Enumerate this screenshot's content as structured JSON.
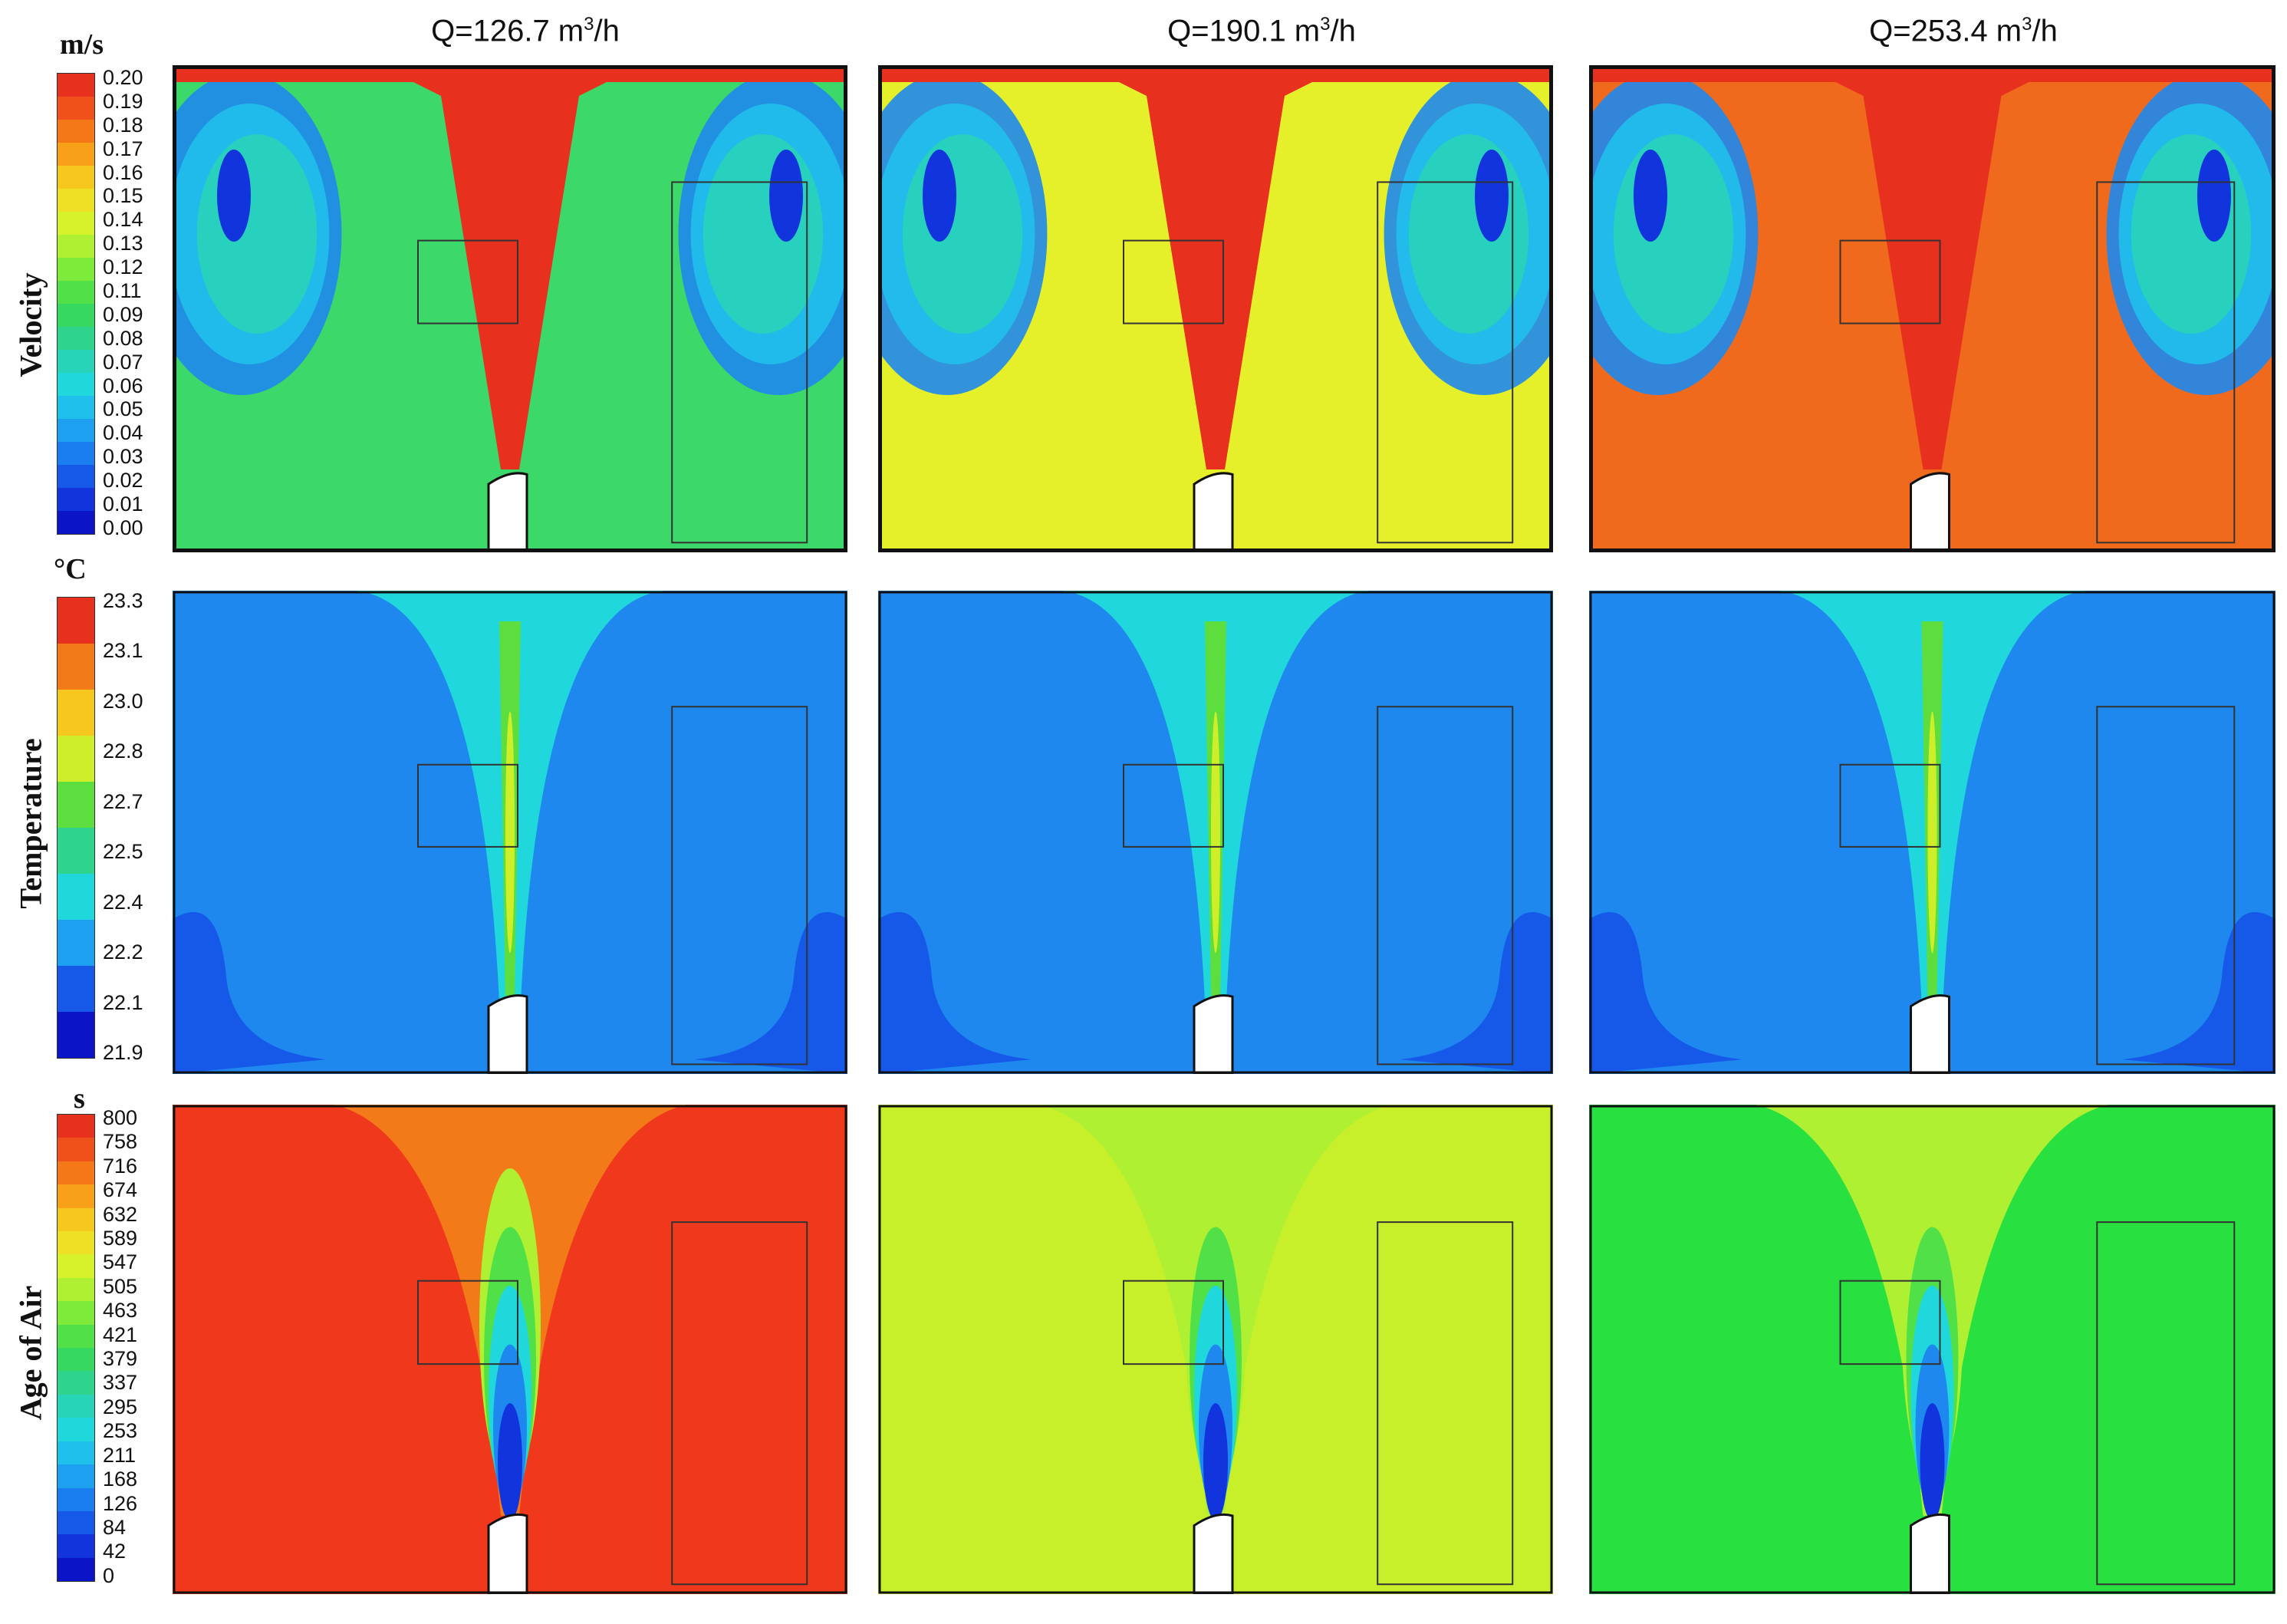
{
  "columns": [
    {
      "label_main": "Q=126.7 m",
      "label_sup": "3",
      "label_tail": "/h"
    },
    {
      "label_main": "Q=190.1 m",
      "label_sup": "3",
      "label_tail": "/h"
    },
    {
      "label_main": "Q=253.4 m",
      "label_sup": "3",
      "label_tail": "/h"
    }
  ],
  "rows": [
    {
      "label": "Velocity",
      "unit": "m/s",
      "ticks": [
        "0.20",
        "0.19",
        "0.18",
        "0.17",
        "0.16",
        "0.15",
        "0.14",
        "0.13",
        "0.12",
        "0.11",
        "0.09",
        "0.08",
        "0.07",
        "0.06",
        "0.05",
        "0.04",
        "0.03",
        "0.02",
        "0.01",
        "0.00"
      ],
      "colors": [
        "#e8301e",
        "#f0501a",
        "#f57818",
        "#f8a018",
        "#f6c81e",
        "#eee024",
        "#d6f22a",
        "#b0f032",
        "#7eea3a",
        "#52e048",
        "#36d860",
        "#2ed48c",
        "#28d4b8",
        "#20d8dc",
        "#20c0ec",
        "#1ea0f0",
        "#1a7ef0",
        "#1658e8",
        "#1234dc",
        "#0c14c8"
      ]
    },
    {
      "label": "Temperature",
      "unit": "°C",
      "ticks": [
        "23.3",
        "23.1",
        "23.0",
        "22.8",
        "22.7",
        "22.5",
        "22.4",
        "22.2",
        "22.1",
        "21.9"
      ],
      "colors": [
        "#e8301e",
        "#f37a18",
        "#f6c81e",
        "#cfee2a",
        "#5ede3e",
        "#2ed48c",
        "#20d8dc",
        "#1ea0f0",
        "#1658e8",
        "#0c14c8"
      ]
    },
    {
      "label": "Age of Air",
      "unit": "s",
      "ticks": [
        "800",
        "758",
        "716",
        "674",
        "632",
        "589",
        "547",
        "505",
        "463",
        "421",
        "379",
        "337",
        "295",
        "253",
        "211",
        "168",
        "126",
        "84",
        "42",
        "0"
      ],
      "colors": [
        "#e8301e",
        "#f0501a",
        "#f57818",
        "#f8a018",
        "#f6c81e",
        "#eee024",
        "#d6f22a",
        "#b0f032",
        "#7eea3a",
        "#52e048",
        "#36d860",
        "#2ed48c",
        "#28d4b8",
        "#20d8dc",
        "#20c0ec",
        "#1ea0f0",
        "#1a7ef0",
        "#1658e8",
        "#1234dc",
        "#0c14c8"
      ]
    }
  ],
  "panel_fills": {
    "velocity": [
      "#3cd86a",
      "#e6f02a",
      "#f06a1e"
    ],
    "temperature": [
      "#1e88ee",
      "#1e88ee",
      "#1e88ee"
    ],
    "age": [
      "#f0381c",
      "#c8f02a",
      "#28e040"
    ]
  }
}
